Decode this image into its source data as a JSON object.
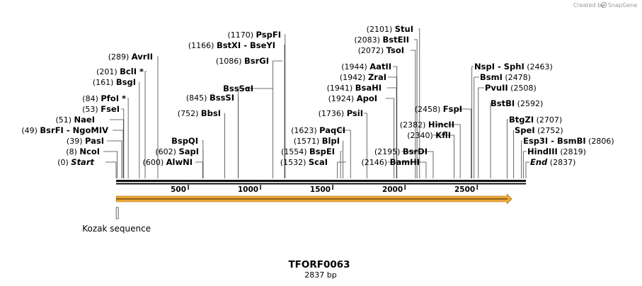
{
  "branding": {
    "created_by": "Created by",
    "brand": "SnapGene",
    "icon": "snapgene-logo-icon"
  },
  "plasmid": {
    "name": "TFORF0063",
    "length_label": "2837 bp",
    "length": 2837
  },
  "ruler": {
    "ticks": [
      500,
      1000,
      1500,
      2000,
      2500
    ]
  },
  "features": [
    {
      "name": "orf-arrow",
      "start": 1,
      "end": 2740,
      "color": "#f0a838",
      "label": ""
    },
    {
      "name": "kozak-sequence",
      "start": 1,
      "end": 10,
      "color": "#777777",
      "label": "Kozak sequence"
    }
  ],
  "sites": [
    {
      "pos": 0,
      "pos_label": "(0)",
      "name": "Start",
      "italic": true
    },
    {
      "pos": 8,
      "pos_label": "(8)",
      "name": "NcoI"
    },
    {
      "pos": 39,
      "pos_label": "(39)",
      "name": "PasI"
    },
    {
      "pos": 49,
      "pos_label": "(49)",
      "name": "BsrFI  -  NgoMIV"
    },
    {
      "pos": 51,
      "pos_label": "(51)",
      "name": "NaeI"
    },
    {
      "pos": 53,
      "pos_label": "(53)",
      "name": "FseI"
    },
    {
      "pos": 84,
      "pos_label": "(84)",
      "name": "PfoI *"
    },
    {
      "pos": 161,
      "pos_label": "(161)",
      "name": "BsgI"
    },
    {
      "pos": 201,
      "pos_label": "(201)",
      "name": "BclI *"
    },
    {
      "pos": 289,
      "pos_label": "(289)",
      "name": "AvrII"
    },
    {
      "pos": 600,
      "pos_label": "(600)",
      "name": "AlwNI"
    },
    {
      "pos": 602,
      "pos_label": "(602)",
      "name": "SapI"
    },
    {
      "pos": 602,
      "pos_label": "",
      "name": "BspQI"
    },
    {
      "pos": 752,
      "pos_label": "(752)",
      "name": "BbsI"
    },
    {
      "pos": 845,
      "pos_label": "(845)",
      "name": "BssSI"
    },
    {
      "pos": 845,
      "pos_label": "",
      "name": "BssSαI"
    },
    {
      "pos": 1086,
      "pos_label": "(1086)",
      "name": "BsrGI"
    },
    {
      "pos": 1166,
      "pos_label": "(1166)",
      "name": "BstXI  -  BseYI"
    },
    {
      "pos": 1170,
      "pos_label": "(1170)",
      "name": "PspFI"
    },
    {
      "pos": 1532,
      "pos_label": "(1532)",
      "name": "ScaI"
    },
    {
      "pos": 1554,
      "pos_label": "(1554)",
      "name": "BspEI"
    },
    {
      "pos": 1571,
      "pos_label": "(1571)",
      "name": "BlpI"
    },
    {
      "pos": 1623,
      "pos_label": "(1623)",
      "name": "PaqCI"
    },
    {
      "pos": 1736,
      "pos_label": "(1736)",
      "name": "PsiI"
    },
    {
      "pos": 1924,
      "pos_label": "(1924)",
      "name": "ApoI"
    },
    {
      "pos": 1941,
      "pos_label": "(1941)",
      "name": "BsaHI"
    },
    {
      "pos": 1942,
      "pos_label": "(1942)",
      "name": "ZraI"
    },
    {
      "pos": 1944,
      "pos_label": "(1944)",
      "name": "AatII"
    },
    {
      "pos": 2072,
      "pos_label": "(2072)",
      "name": "TsoI"
    },
    {
      "pos": 2083,
      "pos_label": "(2083)",
      "name": "BstEII"
    },
    {
      "pos": 2101,
      "pos_label": "(2101)",
      "name": "StuI"
    },
    {
      "pos": 2146,
      "pos_label": "(2146)",
      "name": "BamHI"
    },
    {
      "pos": 2195,
      "pos_label": "(2195)",
      "name": "BsrDI"
    },
    {
      "pos": 2340,
      "pos_label": "(2340)",
      "name": "KflI"
    },
    {
      "pos": 2382,
      "pos_label": "(2382)",
      "name": "HincII"
    },
    {
      "pos": 2458,
      "pos_label": "(2458)",
      "name": "FspI"
    },
    {
      "pos": 2463,
      "pos_label": "(2463)",
      "name": "NspI  -  SphI"
    },
    {
      "pos": 2478,
      "pos_label": "(2478)",
      "name": "BsmI"
    },
    {
      "pos": 2508,
      "pos_label": "(2508)",
      "name": "PvuII"
    },
    {
      "pos": 2592,
      "pos_label": "(2592)",
      "name": "BstBI"
    },
    {
      "pos": 2707,
      "pos_label": "(2707)",
      "name": "BtgZI"
    },
    {
      "pos": 2752,
      "pos_label": "(2752)",
      "name": "SpeI"
    },
    {
      "pos": 2806,
      "pos_label": "(2806)",
      "name": "Esp3I  -  BsmBI"
    },
    {
      "pos": 2819,
      "pos_label": "(2819)",
      "name": "HindIII"
    },
    {
      "pos": 2837,
      "pos_label": "(2837)",
      "name": "End",
      "italic": true
    }
  ]
}
